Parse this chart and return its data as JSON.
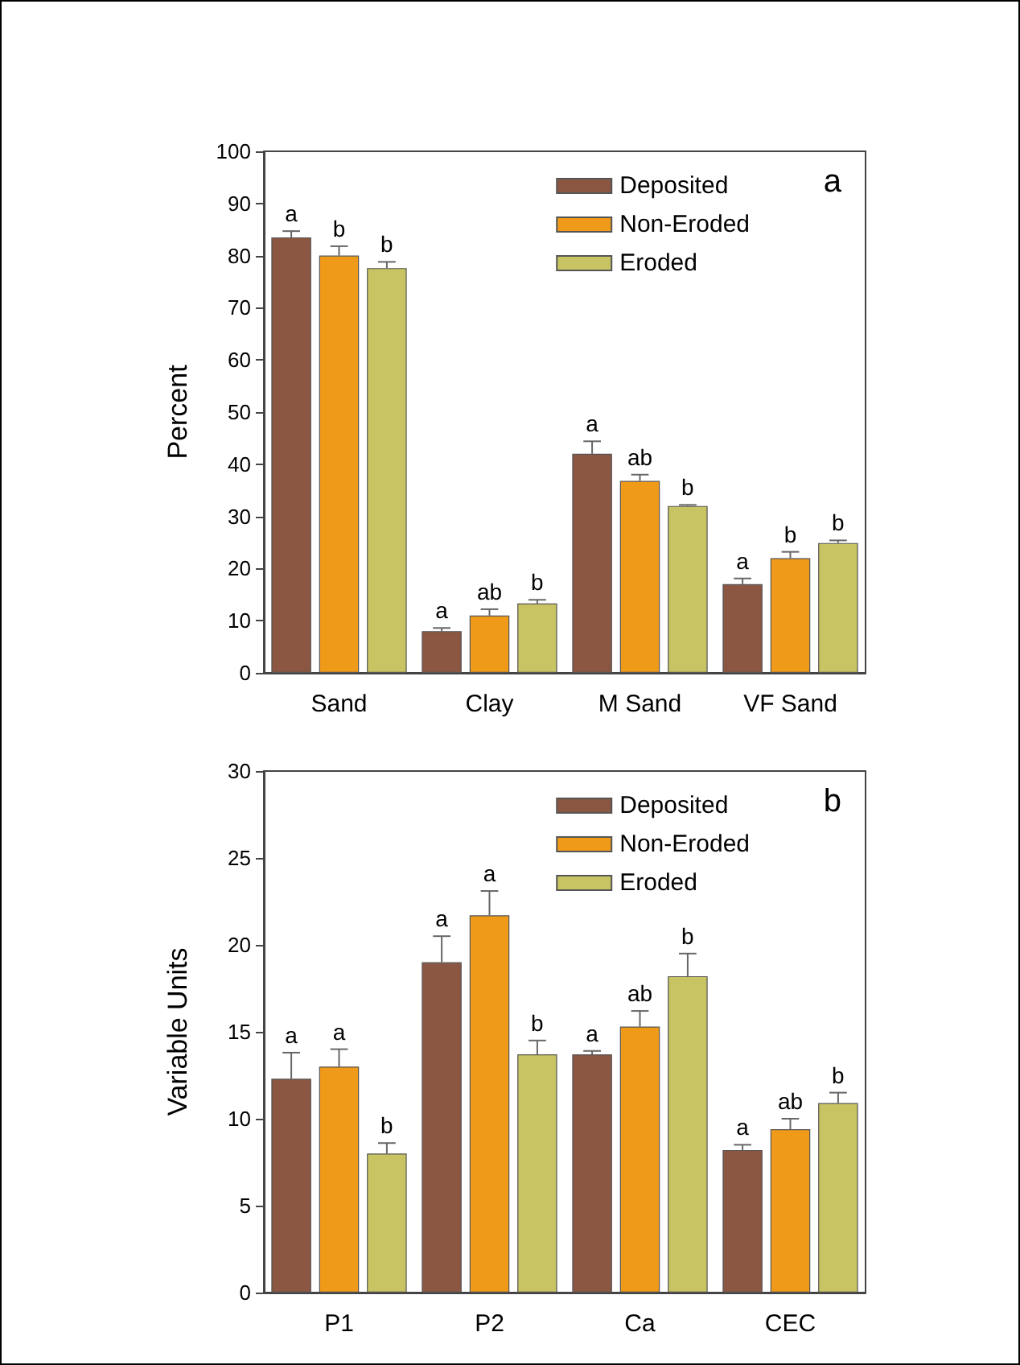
{
  "chart_data": [
    {
      "type": "bar",
      "ylabel": "Percent",
      "categories": [
        "Sand",
        "Clay",
        "M Sand",
        "VF Sand"
      ],
      "ylim": [
        0,
        100
      ],
      "yticks": [
        0,
        10,
        20,
        30,
        40,
        50,
        60,
        70,
        80,
        90,
        100
      ],
      "grid": false,
      "legend": "top right",
      "annotations": [
        "a"
      ],
      "series": [
        {
          "name": "Deposited",
          "color": "#8b5742",
          "values": [
            83.5,
            8,
            42,
            17
          ],
          "errors": [
            [
              83.5,
              84.7
            ],
            [
              8,
              8.6
            ],
            [
              42,
              44.4
            ],
            [
              17,
              18.1
            ]
          ],
          "value_labels": [
            "a",
            "a",
            "a",
            "a"
          ]
        },
        {
          "name": "Non-Eroded",
          "color": "#f09a1a",
          "values": [
            80,
            11,
            36.8,
            22
          ],
          "errors": [
            [
              80,
              81.8
            ],
            [
              11,
              12.2
            ],
            [
              36.8,
              38
            ],
            [
              22,
              23.2
            ]
          ],
          "value_labels": [
            "b",
            "ab",
            "ab",
            "b"
          ]
        },
        {
          "name": "Eroded",
          "color": "#c8c464",
          "values": [
            77.6,
            13.3,
            32,
            24.9
          ],
          "errors": [
            [
              77.6,
              78.8
            ],
            [
              13.3,
              14
            ],
            [
              32,
              32.2
            ],
            [
              24.9,
              25.4
            ]
          ],
          "value_labels": [
            "b",
            "b",
            "b",
            "b"
          ]
        }
      ]
    },
    {
      "type": "bar",
      "ylabel": "Variable Units",
      "categories": [
        "P1",
        "P2",
        "Ca",
        "CEC"
      ],
      "ylim": [
        0,
        30
      ],
      "yticks": [
        0,
        5,
        10,
        15,
        20,
        25,
        30
      ],
      "grid": false,
      "legend": "top right",
      "annotations": [
        "b"
      ],
      "series": [
        {
          "name": "Deposited",
          "color": "#8b5742",
          "values": [
            12.3,
            19,
            13.7,
            8.2
          ],
          "errors": [
            [
              12.3,
              13.8
            ],
            [
              19,
              20.5
            ],
            [
              13.7,
              13.9
            ],
            [
              8.2,
              8.5
            ]
          ],
          "value_labels": [
            "a",
            "a",
            "a",
            "a"
          ]
        },
        {
          "name": "Non-Eroded",
          "color": "#f09a1a",
          "values": [
            13,
            21.7,
            15.3,
            9.4
          ],
          "errors": [
            [
              13,
              14
            ],
            [
              21.7,
              23.1
            ],
            [
              15.3,
              16.2
            ],
            [
              9.4,
              10
            ]
          ],
          "value_labels": [
            "a",
            "a",
            "ab",
            "ab"
          ]
        },
        {
          "name": "Eroded",
          "color": "#c8c464",
          "values": [
            8,
            13.7,
            18.2,
            10.9
          ],
          "errors": [
            [
              8,
              8.6
            ],
            [
              13.7,
              14.5
            ],
            [
              18.2,
              19.5
            ],
            [
              10.9,
              11.5
            ]
          ],
          "value_labels": [
            "b",
            "b",
            "b",
            "b"
          ]
        }
      ]
    }
  ]
}
